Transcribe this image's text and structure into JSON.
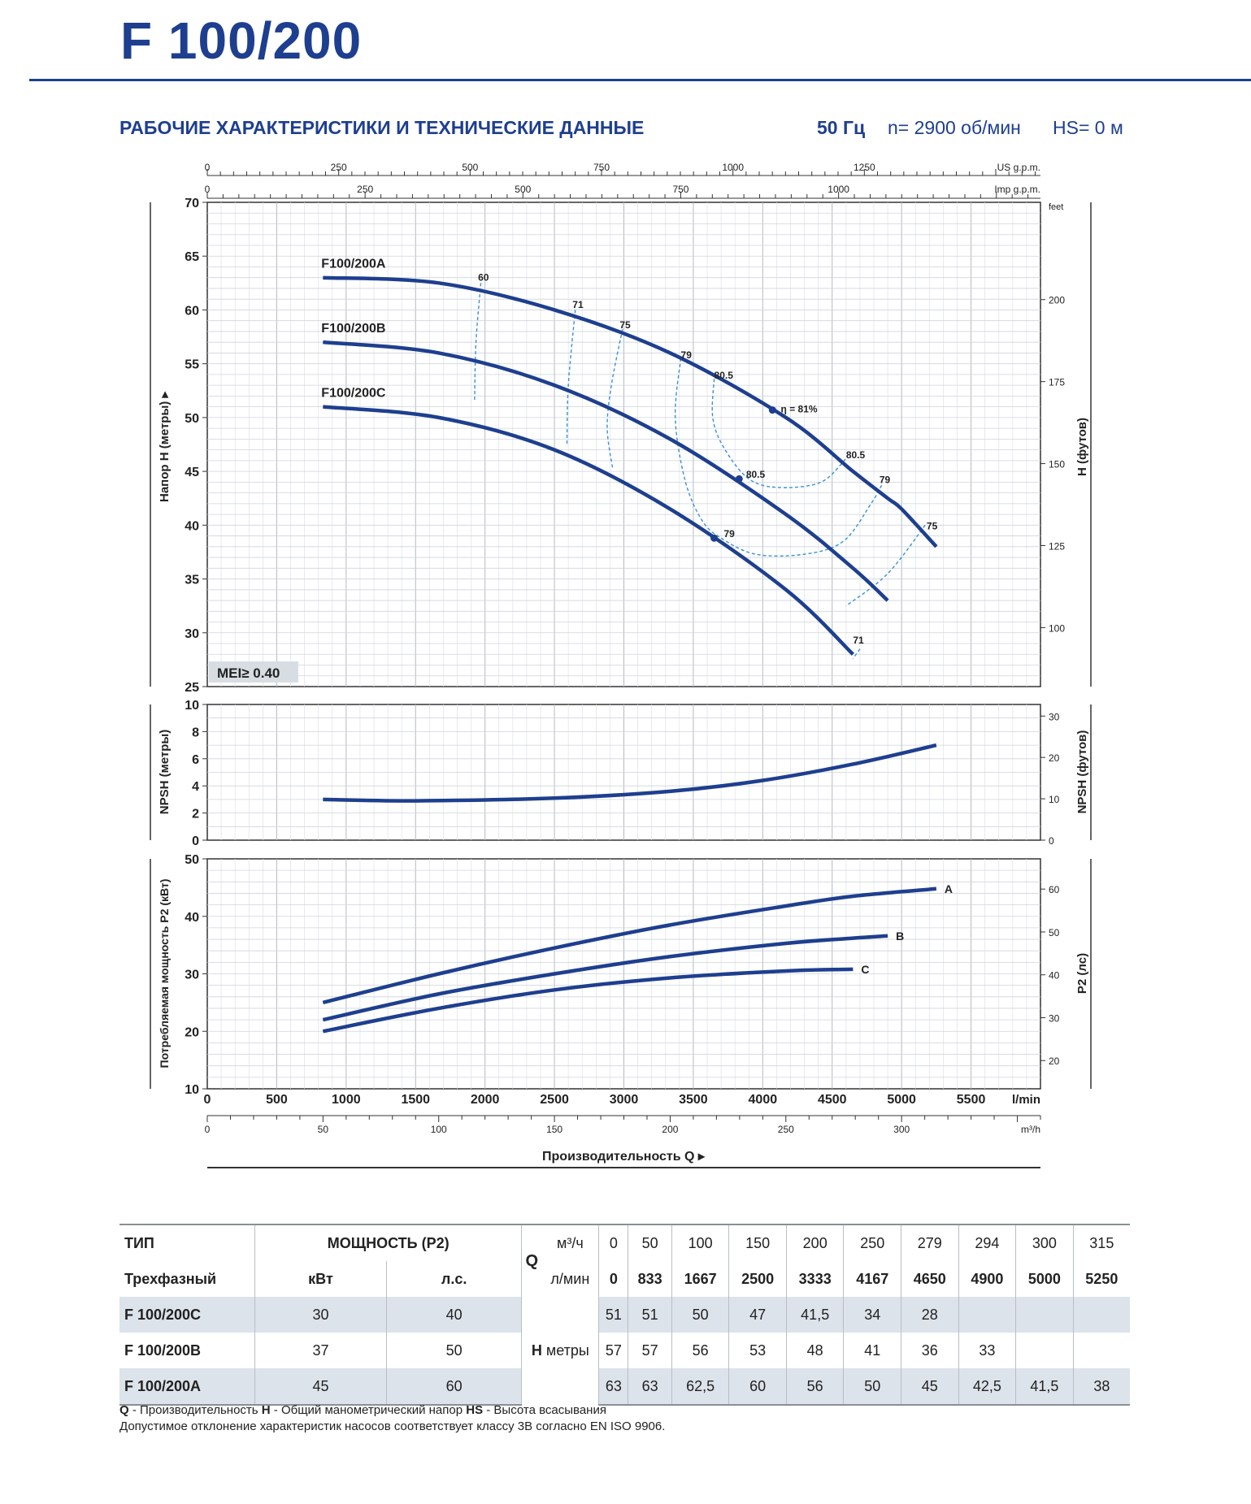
{
  "header": {
    "title": "F 100/200",
    "subtitle": "РАБОЧИЕ ХАРАКТЕРИСТИКИ И ТЕХНИЧЕСКИЕ ДАННЫЕ",
    "freq": "50 Гц",
    "speed": "n= 2900 об/мин",
    "hs": "HS= 0 м"
  },
  "colors": {
    "brand": "#1e3f8f",
    "curve": "#1e3f8f",
    "efficiency": "#3a8fd8",
    "grid": "#c9ced6",
    "row_shade": "#dde3ea"
  },
  "chart_data": [
    {
      "type": "line",
      "name": "head",
      "ylabel": "Напор H (метры)",
      "ylabel_right": "H (футов)",
      "ylim": [
        25,
        70
      ],
      "yticks": [
        25,
        30,
        35,
        40,
        45,
        50,
        55,
        60,
        65,
        70
      ],
      "feet_ticks": [
        100,
        125,
        150,
        175,
        200
      ],
      "feet_label": "feet",
      "xlim": [
        0,
        6000
      ],
      "top_axis_us": {
        "label": "US g.p.m.",
        "ticks": [
          0,
          250,
          500,
          750,
          1000,
          1250
        ]
      },
      "top_axis_imp": {
        "label": "Imp g.p.m.",
        "ticks": [
          0,
          250,
          500,
          750,
          1000
        ]
      },
      "mei": "MEI≥ 0.40",
      "series": [
        {
          "name": "F100/200A",
          "x": [
            833,
            1667,
            2500,
            3333,
            4167,
            4650,
            4900,
            5000,
            5250
          ],
          "y": [
            63,
            62.5,
            60,
            56,
            50,
            45,
            42.5,
            41.5,
            38
          ]
        },
        {
          "name": "F100/200B",
          "x": [
            833,
            1667,
            2500,
            3333,
            4167,
            4650,
            4900
          ],
          "y": [
            57,
            56,
            53,
            48,
            41,
            36,
            33
          ]
        },
        {
          "name": "F100/200C",
          "x": [
            833,
            1667,
            2500,
            3333,
            4167,
            4650
          ],
          "y": [
            51,
            50,
            47,
            41.5,
            34,
            28
          ]
        }
      ],
      "efficiency_labels": [
        {
          "text": "60",
          "x": 1950,
          "y": 62.7
        },
        {
          "text": "71",
          "x": 2630,
          "y": 60.2
        },
        {
          "text": "75",
          "x": 2970,
          "y": 58.3
        },
        {
          "text": "79",
          "x": 3410,
          "y": 55.5
        },
        {
          "text": "80.5",
          "x": 3650,
          "y": 53.6
        },
        {
          "text": "η = 81%",
          "x": 4130,
          "y": 50.5
        },
        {
          "text": "80.5",
          "x": 4600,
          "y": 46.2
        },
        {
          "text": "79",
          "x": 4840,
          "y": 43.9
        },
        {
          "text": "75",
          "x": 5180,
          "y": 39.6
        },
        {
          "text": "80.5",
          "x": 3880,
          "y": 44.4
        },
        {
          "text": "79",
          "x": 3720,
          "y": 38.9
        },
        {
          "text": "71",
          "x": 4650,
          "y": 29.0
        }
      ],
      "efficiency_points": [
        {
          "x": 4070,
          "y": 50.7
        },
        {
          "x": 3830,
          "y": 44.3
        },
        {
          "x": 3650,
          "y": 38.8
        }
      ]
    },
    {
      "type": "line",
      "name": "npsh",
      "ylabel": "NPSH (метры)",
      "ylabel_right": "NPSH (футов)",
      "ylim": [
        0,
        10
      ],
      "yticks": [
        0,
        2,
        4,
        6,
        8,
        10
      ],
      "feet_ticks": [
        0,
        10,
        20,
        30
      ],
      "series": [
        {
          "name": "NPSH",
          "x": [
            833,
            1500,
            2500,
            3333,
            4000,
            4650,
            5250
          ],
          "y": [
            3.0,
            2.9,
            3.1,
            3.6,
            4.4,
            5.6,
            7.0
          ]
        }
      ]
    },
    {
      "type": "line",
      "name": "power",
      "ylabel": "Потребляемая мощность P2 (кВт)",
      "ylabel_right": "P2 (лс)",
      "ylim": [
        10,
        50
      ],
      "yticks": [
        10,
        20,
        30,
        40,
        50
      ],
      "hp_ticks": [
        20,
        30,
        40,
        50,
        60
      ],
      "xlabel": "Производительность Q",
      "xticks_lmin": [
        0,
        500,
        1000,
        1500,
        2000,
        2500,
        3000,
        3500,
        4000,
        4500,
        5000,
        5500
      ],
      "x_unit_lmin": "l/min",
      "xticks_m3h": [
        0,
        50,
        100,
        150,
        200,
        250,
        300
      ],
      "x_unit_m3h": "m³/h",
      "series": [
        {
          "name": "A",
          "x": [
            833,
            1667,
            2500,
            3333,
            4167,
            4650,
            5250
          ],
          "y": [
            25.0,
            30.0,
            34.5,
            38.5,
            41.8,
            43.5,
            44.8
          ]
        },
        {
          "name": "B",
          "x": [
            833,
            1667,
            2500,
            3333,
            4167,
            4650,
            4900
          ],
          "y": [
            22.0,
            26.5,
            30.0,
            33.0,
            35.3,
            36.2,
            36.6
          ]
        },
        {
          "name": "C",
          "x": [
            833,
            1667,
            2500,
            3333,
            4167,
            4650
          ],
          "y": [
            20.0,
            24.0,
            27.2,
            29.3,
            30.5,
            30.8
          ]
        }
      ]
    }
  ],
  "table": {
    "h_type": "ТИП",
    "h_phase": "Трехфазный",
    "h_power": "МОЩНОСТЬ (P2)",
    "h_kw": "кВт",
    "h_hp": "л.с.",
    "h_q": "Q",
    "h_m3h": "м³/ч",
    "h_lmin": "л/мин",
    "q_m3h": [
      "0",
      "50",
      "100",
      "150",
      "200",
      "250",
      "279",
      "294",
      "300",
      "315"
    ],
    "q_lmin": [
      "0",
      "833",
      "1667",
      "2500",
      "3333",
      "4167",
      "4650",
      "4900",
      "5000",
      "5250"
    ],
    "h_label": "H",
    "h_unit": "метры",
    "rows": [
      {
        "type": "F 100/200C",
        "kw": "30",
        "hp": "40",
        "h": [
          "51",
          "51",
          "50",
          "47",
          "41,5",
          "34",
          "28",
          "",
          "",
          ""
        ]
      },
      {
        "type": "F 100/200B",
        "kw": "37",
        "hp": "50",
        "h": [
          "57",
          "57",
          "56",
          "53",
          "48",
          "41",
          "36",
          "33",
          "",
          ""
        ]
      },
      {
        "type": "F 100/200A",
        "kw": "45",
        "hp": "60",
        "h": [
          "63",
          "63",
          "62,5",
          "60",
          "56",
          "50",
          "45",
          "42,5",
          "41,5",
          "38"
        ]
      }
    ]
  },
  "footer": {
    "q": "Q",
    "q_text": " - Производительность  ",
    "h": "H",
    "h_text": " - Общий манометрический напор  ",
    "hs": "HS",
    "hs_text": " - Высота всасывания",
    "note": "Допустимое отклонение характеристик насосов соответствует классу 3В согласно EN ISO 9906."
  }
}
